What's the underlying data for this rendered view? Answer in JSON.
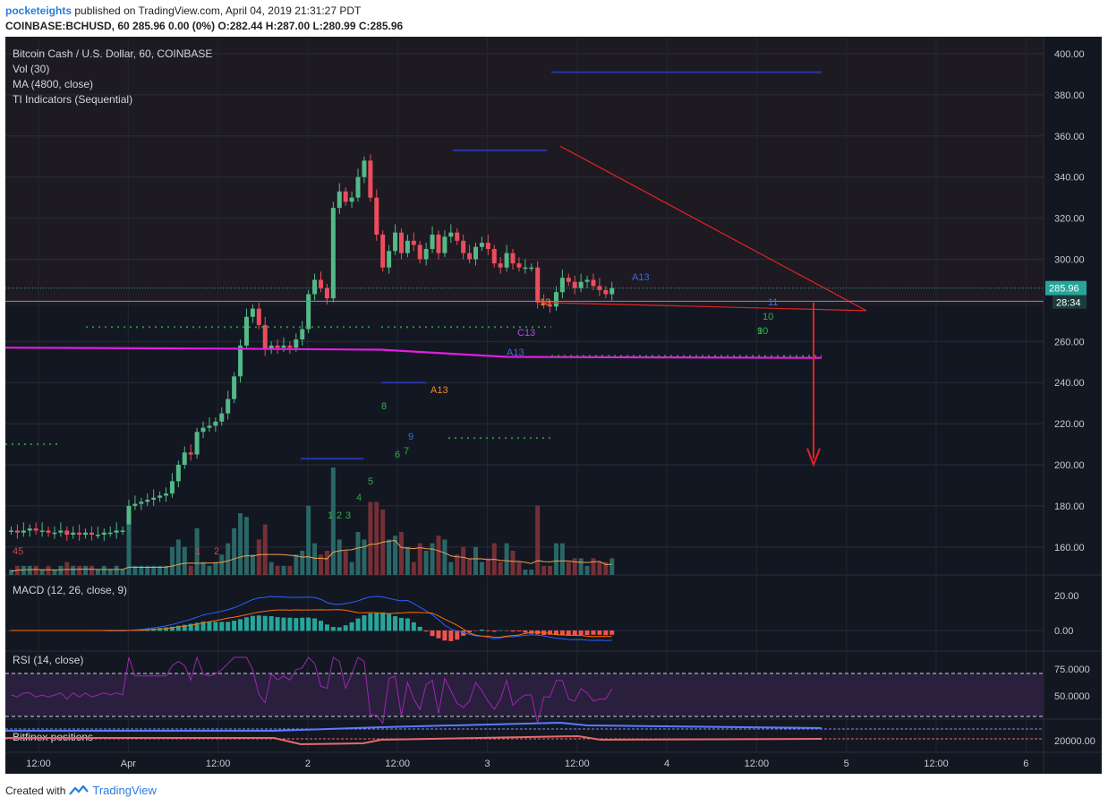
{
  "header": {
    "user": "pocketeights",
    "published": "published on TradingView.com, April 04, 2019 21:31:27 PDT",
    "ohlc_line": "COINBASE:BCHUSD, 60  285.96 0.00 (0%) O:282.44 H:287.00 L:280.99 C:285.96"
  },
  "legend": {
    "symbol": "Bitcoin Cash / U.S. Dollar, 60, COINBASE",
    "vol": "Vol (30)",
    "ma": "MA (4800, close)",
    "ti": "TI Indicators (Sequential)"
  },
  "panes": {
    "macd": "MACD (12, 26, close, 9)",
    "rsi": "RSI (14, close)",
    "bitfinex": "Bitfinex positions"
  },
  "price_tag": {
    "last": "285.96",
    "countdown": "28:34"
  },
  "footer": {
    "created_with": "Created with",
    "brand": "TradingView"
  },
  "colors": {
    "background": "#131722",
    "bull": "#53b987",
    "bear": "#eb4d5c",
    "ma": "#e11ee1",
    "trendline": "#e52222",
    "last_price": "#26a69a"
  },
  "chart_data": {
    "type": "candlestick",
    "title": "Bitcoin Cash / U.S. Dollar, 60, COINBASE",
    "price_axis": {
      "ticks": [
        "400.00",
        "380.00",
        "360.00",
        "340.00",
        "320.00",
        "300.00",
        "280.00",
        "260.00",
        "240.00",
        "220.00",
        "200.00",
        "180.00",
        "160.00"
      ],
      "range": [
        145,
        404
      ]
    },
    "time_axis": {
      "ticks": [
        "12:00",
        "Apr",
        "12:00",
        "2",
        "12:00",
        "3",
        "12:00",
        "4",
        "12:00",
        "5",
        "12:00",
        "6"
      ]
    },
    "ohlc_segments_close": [
      {
        "from": "start",
        "to": "Apr 1 18:00",
        "close": [
          168,
          167,
          168,
          169,
          168,
          168,
          167,
          167,
          168,
          166,
          167,
          166,
          167,
          166,
          166,
          167,
          167,
          168,
          168
        ]
      },
      {
        "note": "rally Apr 1 19:00 - Apr 2 10:00",
        "close": [
          180,
          181,
          182,
          183,
          184,
          185,
          186,
          192,
          200,
          206,
          205,
          216,
          218,
          219,
          221,
          225,
          232,
          243,
          258,
          272,
          276,
          268,
          256,
          258,
          257,
          258,
          257,
          261,
          266,
          283,
          290,
          286,
          281,
          325,
          333,
          328,
          330,
          340,
          348,
          330,
          312,
          296,
          304,
          313
        ]
      },
      {
        "note": "Apr 3 consolidation",
        "close": [
          303,
          309,
          307,
          300,
          305,
          312,
          303,
          311,
          313,
          309,
          303,
          300,
          306,
          308,
          305,
          298,
          296,
          303,
          298,
          296,
          296,
          296,
          279,
          278,
          277,
          284,
          291,
          289,
          286,
          289,
          290,
          287,
          285,
          283,
          286
        ]
      }
    ],
    "ma_4800": [
      257.0,
      255.5,
      252.5,
      252.0
    ],
    "trendlines": [
      {
        "name": "descending resistance",
        "from": [
          "Apr 3 10:00",
          355
        ],
        "to": [
          "Apr 5 06:00",
          275
        ]
      },
      {
        "name": "support",
        "from": [
          "Apr 3 09:00",
          279
        ],
        "to": [
          "Apr 5 06:00",
          275
        ]
      }
    ],
    "projection_target": 200,
    "last_price": 285.96,
    "macd": {
      "ticks": [
        "20.00",
        "0.00"
      ]
    },
    "rsi": {
      "ticks": [
        "75.0000",
        "50.0000"
      ],
      "levels": [
        70,
        30
      ]
    },
    "bitfinex": {
      "ticks": [
        "20000.00"
      ]
    },
    "sequential_labels": [
      "45",
      "1",
      "2",
      "1",
      "2",
      "3",
      "4",
      "5",
      "6",
      "7",
      "8",
      "9",
      "A13",
      "13",
      "C13",
      "A13",
      "9",
      "10",
      "11",
      "A13",
      "10"
    ]
  }
}
